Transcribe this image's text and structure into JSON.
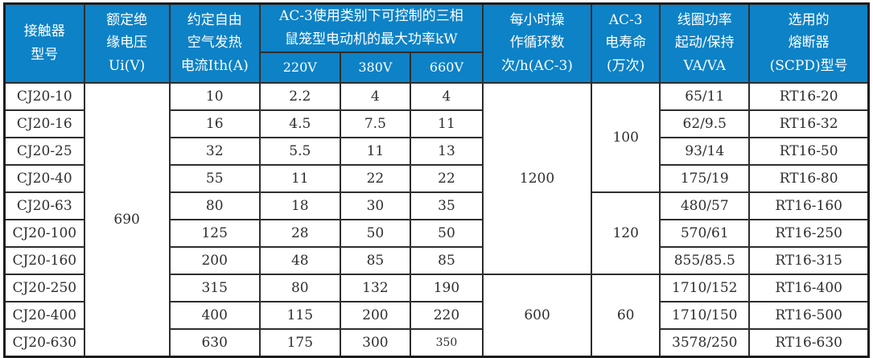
{
  "table": {
    "header": {
      "model": "接触器\n型号",
      "ui": "额定绝\n缘电压\nUi(V)",
      "ith": "约定自由\n空气发热\n电流Ith(A)",
      "kw_group": "AC-3使用类别下可控制的三相\n鼠笼型电动机的最大功率kW",
      "kw_220": "220V",
      "kw_380": "380V",
      "kw_660": "660V",
      "cycles": "每小时操\n作循环数\n次/h(AC-3)",
      "life": "AC-3\n电寿命\n(万次)",
      "coil": "线圈功率\n起动/保持\nVA/VA",
      "fuse": "选用的\n熔断器\n(SCPD)型号"
    },
    "rows": [
      {
        "model": "CJ20-10",
        "ith": "10",
        "kw220": "2.2",
        "kw380": "4",
        "kw660": "4",
        "coil": "65/11",
        "fuse": "RT16-20"
      },
      {
        "model": "CJ20-16",
        "ith": "16",
        "kw220": "4.5",
        "kw380": "7.5",
        "kw660": "11",
        "coil": "62/9.5",
        "fuse": "RT16-32"
      },
      {
        "model": "CJ20-25",
        "ith": "32",
        "kw220": "5.5",
        "kw380": "11",
        "kw660": "13",
        "coil": "93/14",
        "fuse": "RT16-50"
      },
      {
        "model": "CJ20-40",
        "ith": "55",
        "kw220": "11",
        "kw380": "22",
        "kw660": "22",
        "coil": "175/19",
        "fuse": "RT16-80"
      },
      {
        "model": "CJ20-63",
        "ith": "80",
        "kw220": "18",
        "kw380": "30",
        "kw660": "35",
        "coil": "480/57",
        "fuse": "RT16-160"
      },
      {
        "model": "CJ20-100",
        "ith": "125",
        "kw220": "28",
        "kw380": "50",
        "kw660": "50",
        "coil": "570/61",
        "fuse": "RT16-250"
      },
      {
        "model": "CJ20-160",
        "ith": "200",
        "kw220": "48",
        "kw380": "85",
        "kw660": "85",
        "coil": "855/85.5",
        "fuse": "RT16-315"
      },
      {
        "model": "CJ20-250",
        "ith": "315",
        "kw220": "80",
        "kw380": "132",
        "kw660": "190",
        "coil": "1710/152",
        "fuse": "RT16-400"
      },
      {
        "model": "CJ20-400",
        "ith": "400",
        "kw220": "115",
        "kw380": "200",
        "kw660": "220",
        "coil": "1710/150",
        "fuse": "RT16-500"
      },
      {
        "model": "CJ20-630",
        "ith": "630",
        "kw220": "175",
        "kw380": "300",
        "kw660": "350",
        "coil": "3578/250",
        "fuse": "RT16-630"
      }
    ],
    "merged": {
      "ui": [
        {
          "value": "690",
          "start": 0,
          "span": 10
        }
      ],
      "cycles": [
        {
          "value": "1200",
          "start": 0,
          "span": 7
        },
        {
          "value": "600",
          "start": 7,
          "span": 3
        }
      ],
      "life": [
        {
          "value": "100",
          "start": 0,
          "span": 4
        },
        {
          "value": "120",
          "start": 4,
          "span": 3
        },
        {
          "value": "60",
          "start": 7,
          "span": 3
        }
      ]
    },
    "colors": {
      "header_bg": "#0d82c6",
      "header_text": "#ffffff",
      "body_text": "#2e2e2e",
      "border": "#1c1c1c"
    }
  }
}
